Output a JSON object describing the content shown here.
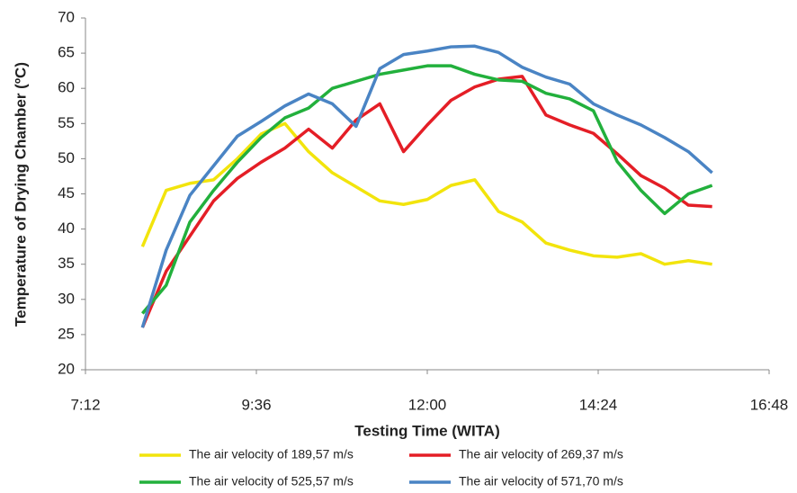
{
  "chart_data": {
    "type": "line",
    "x_label": "Testing Time (WITA)",
    "y_label": "Temperature of Drying Chamber (ºC)",
    "x": [
      480,
      500,
      520,
      540,
      560,
      580,
      600,
      620,
      640,
      660,
      680,
      700,
      720,
      740,
      760,
      780,
      800,
      820,
      840,
      860,
      880,
      900,
      920,
      940,
      960
    ],
    "series": [
      {
        "name": "The air velocity of 189,57 m/s",
        "color": "#f2e40c",
        "values": [
          37.5,
          45.5,
          46.5,
          47,
          50,
          53.5,
          55,
          51,
          48,
          46,
          44,
          43.5,
          44.2,
          46.2,
          47,
          42.5,
          41,
          38,
          37,
          36.2,
          36,
          36.5,
          35,
          35.5,
          35
        ]
      },
      {
        "name": "The air velocity of 269,37 m/s",
        "color": "#e41e26",
        "values": [
          26,
          34,
          39,
          44,
          47.2,
          49.5,
          51.5,
          54.2,
          51.5,
          55.5,
          57.8,
          51,
          54.8,
          58.3,
          60.2,
          61.3,
          61.7,
          56.2,
          54.8,
          53.6,
          50.7,
          47.6,
          45.8,
          43.4,
          43.2
        ]
      },
      {
        "name": "The air velocity of 525,57 m/s",
        "color": "#22b03c",
        "values": [
          28,
          32,
          41,
          45.5,
          49.5,
          53,
          55.8,
          57.2,
          60,
          61,
          62,
          62.6,
          63.2,
          63.2,
          62,
          61.2,
          61,
          59.3,
          58.5,
          56.8,
          49.6,
          45.5,
          42.2,
          45,
          46.2
        ]
      },
      {
        "name": "The air velocity of 571,70 m/s",
        "color": "#4a84c4",
        "values": [
          26,
          37,
          44.8,
          49,
          53.2,
          55.3,
          57.5,
          59.2,
          57.8,
          54.6,
          62.8,
          64.8,
          65.3,
          65.9,
          66,
          65.1,
          63,
          61.6,
          60.6,
          57.8,
          56.2,
          54.8,
          53,
          51,
          48
        ]
      }
    ],
    "xlim": [
      432,
      1008
    ],
    "xticks": [
      {
        "value": 432,
        "label": "7:12"
      },
      {
        "value": 576,
        "label": "9:36"
      },
      {
        "value": 720,
        "label": "12:00"
      },
      {
        "value": 864,
        "label": "14:24"
      },
      {
        "value": 1008,
        "label": "16:48"
      }
    ],
    "ylim": [
      20,
      70
    ],
    "yticks": [
      20,
      25,
      30,
      35,
      40,
      45,
      50,
      55,
      60,
      65,
      70
    ],
    "grid": false
  }
}
